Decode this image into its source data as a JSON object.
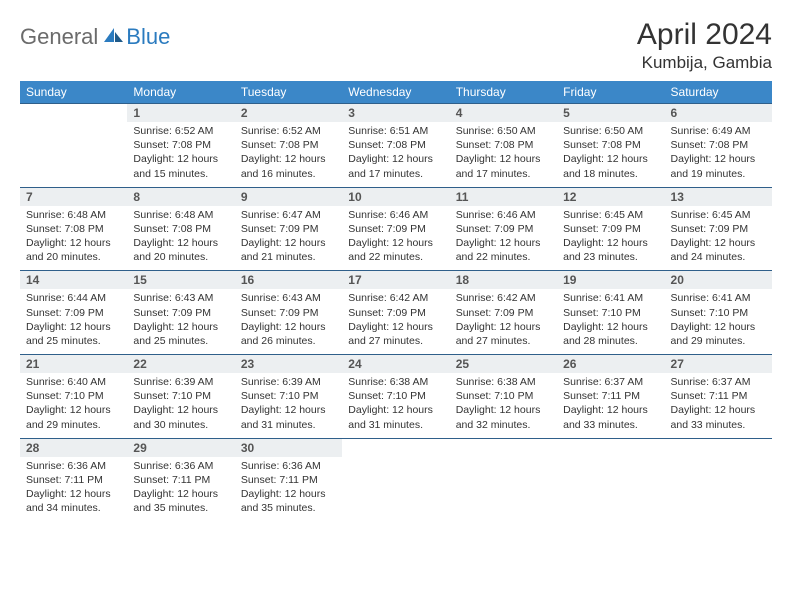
{
  "logo": {
    "general": "General",
    "blue": "Blue"
  },
  "header": {
    "monthYear": "April 2024",
    "location": "Kumbija, Gambia"
  },
  "colors": {
    "headerBg": "#3b87c8",
    "headerText": "#ffffff",
    "dayNumBg": "#eceff1",
    "rowBorder": "#2f5f8a",
    "logoGray": "#6b6b6b",
    "logoBlue": "#2b7bbf"
  },
  "dayNames": [
    "Sunday",
    "Monday",
    "Tuesday",
    "Wednesday",
    "Thursday",
    "Friday",
    "Saturday"
  ],
  "layout": {
    "startOffset": 1,
    "daysInMonth": 30,
    "columns": 7
  },
  "days": {
    "1": {
      "sunrise": "6:52 AM",
      "sunset": "7:08 PM",
      "daylight": "12 hours and 15 minutes."
    },
    "2": {
      "sunrise": "6:52 AM",
      "sunset": "7:08 PM",
      "daylight": "12 hours and 16 minutes."
    },
    "3": {
      "sunrise": "6:51 AM",
      "sunset": "7:08 PM",
      "daylight": "12 hours and 17 minutes."
    },
    "4": {
      "sunrise": "6:50 AM",
      "sunset": "7:08 PM",
      "daylight": "12 hours and 17 minutes."
    },
    "5": {
      "sunrise": "6:50 AM",
      "sunset": "7:08 PM",
      "daylight": "12 hours and 18 minutes."
    },
    "6": {
      "sunrise": "6:49 AM",
      "sunset": "7:08 PM",
      "daylight": "12 hours and 19 minutes."
    },
    "7": {
      "sunrise": "6:48 AM",
      "sunset": "7:08 PM",
      "daylight": "12 hours and 20 minutes."
    },
    "8": {
      "sunrise": "6:48 AM",
      "sunset": "7:08 PM",
      "daylight": "12 hours and 20 minutes."
    },
    "9": {
      "sunrise": "6:47 AM",
      "sunset": "7:09 PM",
      "daylight": "12 hours and 21 minutes."
    },
    "10": {
      "sunrise": "6:46 AM",
      "sunset": "7:09 PM",
      "daylight": "12 hours and 22 minutes."
    },
    "11": {
      "sunrise": "6:46 AM",
      "sunset": "7:09 PM",
      "daylight": "12 hours and 22 minutes."
    },
    "12": {
      "sunrise": "6:45 AM",
      "sunset": "7:09 PM",
      "daylight": "12 hours and 23 minutes."
    },
    "13": {
      "sunrise": "6:45 AM",
      "sunset": "7:09 PM",
      "daylight": "12 hours and 24 minutes."
    },
    "14": {
      "sunrise": "6:44 AM",
      "sunset": "7:09 PM",
      "daylight": "12 hours and 25 minutes."
    },
    "15": {
      "sunrise": "6:43 AM",
      "sunset": "7:09 PM",
      "daylight": "12 hours and 25 minutes."
    },
    "16": {
      "sunrise": "6:43 AM",
      "sunset": "7:09 PM",
      "daylight": "12 hours and 26 minutes."
    },
    "17": {
      "sunrise": "6:42 AM",
      "sunset": "7:09 PM",
      "daylight": "12 hours and 27 minutes."
    },
    "18": {
      "sunrise": "6:42 AM",
      "sunset": "7:09 PM",
      "daylight": "12 hours and 27 minutes."
    },
    "19": {
      "sunrise": "6:41 AM",
      "sunset": "7:10 PM",
      "daylight": "12 hours and 28 minutes."
    },
    "20": {
      "sunrise": "6:41 AM",
      "sunset": "7:10 PM",
      "daylight": "12 hours and 29 minutes."
    },
    "21": {
      "sunrise": "6:40 AM",
      "sunset": "7:10 PM",
      "daylight": "12 hours and 29 minutes."
    },
    "22": {
      "sunrise": "6:39 AM",
      "sunset": "7:10 PM",
      "daylight": "12 hours and 30 minutes."
    },
    "23": {
      "sunrise": "6:39 AM",
      "sunset": "7:10 PM",
      "daylight": "12 hours and 31 minutes."
    },
    "24": {
      "sunrise": "6:38 AM",
      "sunset": "7:10 PM",
      "daylight": "12 hours and 31 minutes."
    },
    "25": {
      "sunrise": "6:38 AM",
      "sunset": "7:10 PM",
      "daylight": "12 hours and 32 minutes."
    },
    "26": {
      "sunrise": "6:37 AM",
      "sunset": "7:11 PM",
      "daylight": "12 hours and 33 minutes."
    },
    "27": {
      "sunrise": "6:37 AM",
      "sunset": "7:11 PM",
      "daylight": "12 hours and 33 minutes."
    },
    "28": {
      "sunrise": "6:36 AM",
      "sunset": "7:11 PM",
      "daylight": "12 hours and 34 minutes."
    },
    "29": {
      "sunrise": "6:36 AM",
      "sunset": "7:11 PM",
      "daylight": "12 hours and 35 minutes."
    },
    "30": {
      "sunrise": "6:36 AM",
      "sunset": "7:11 PM",
      "daylight": "12 hours and 35 minutes."
    }
  },
  "labels": {
    "sunrise": "Sunrise: ",
    "sunset": "Sunset: ",
    "daylight": "Daylight: "
  }
}
